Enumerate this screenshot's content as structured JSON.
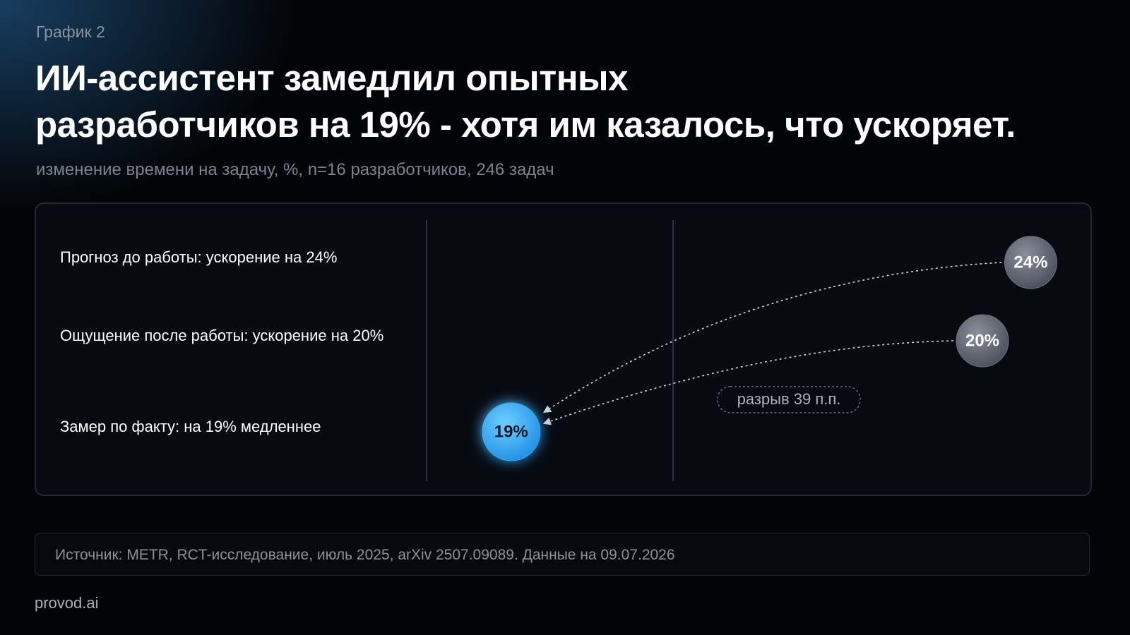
{
  "label": "График 2",
  "chart_data": {
    "type": "dot",
    "title": "ИИ-ассистент замедлил опытных\nразработчиков на 19% - хотя им казалось, что ускоряет.",
    "subtitle": "изменение времени на задачу, %, n=16 разработчиков, 246 задач",
    "categories": [
      "Прогноз до работы: ускорение на 24%",
      "Ощущение после работы: ускорение на 20%",
      "Замер по факту: на 19% медленнее"
    ],
    "values": [
      24,
      20,
      -19
    ],
    "value_labels": [
      "24%",
      "20%",
      "19%"
    ],
    "colors": [
      "#6b707d",
      "#6b707d",
      "#3aaaf5"
    ],
    "xlim": [
      -26,
      29
    ],
    "annotation": "разрыв 39 п.п."
  },
  "footer": {
    "source": "Источник: METR, RCT-исследование, июль 2025, arXiv 2507.09089. Данные на 09.07.2026",
    "brand": "provod.ai"
  }
}
